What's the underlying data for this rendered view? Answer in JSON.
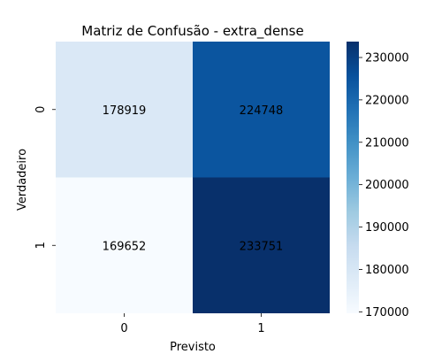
{
  "chart_data": {
    "type": "heatmap",
    "title": "Matriz de Confusão - extra_dense",
    "xlabel": "Previsto",
    "ylabel": "Verdadeiro",
    "x_categories": [
      "0",
      "1"
    ],
    "y_categories": [
      "0",
      "1"
    ],
    "values": [
      [
        178919,
        224748
      ],
      [
        169652,
        233751
      ]
    ],
    "colormap": "Blues",
    "colorbar": {
      "range": [
        169652,
        233751
      ],
      "ticks": [
        170000,
        180000,
        190000,
        200000,
        210000,
        220000,
        230000
      ]
    }
  }
}
